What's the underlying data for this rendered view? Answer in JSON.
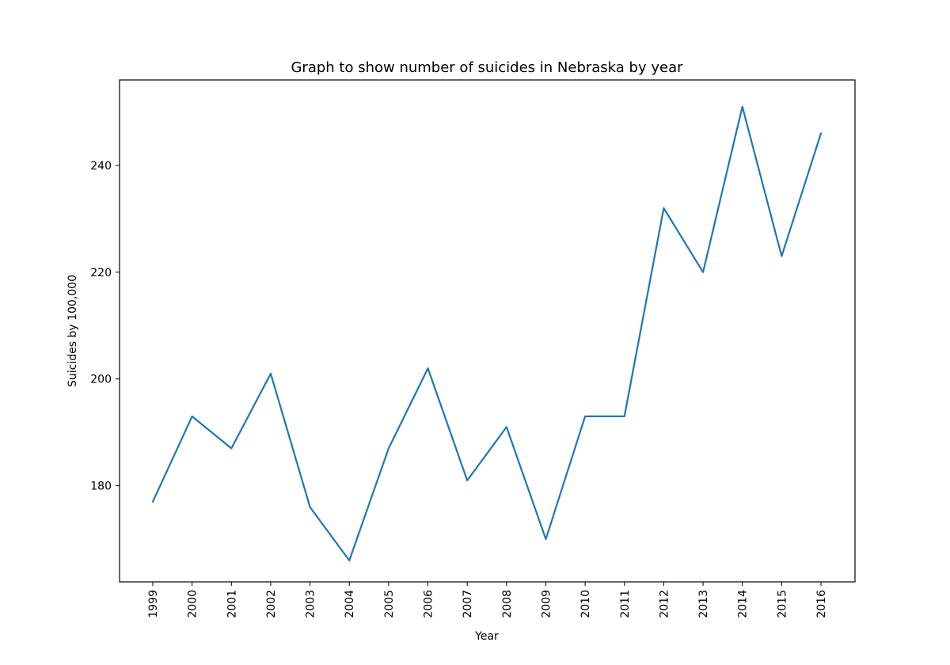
{
  "chart_data": {
    "type": "line",
    "title": "Graph to show number of suicides in Nebraska by year",
    "xlabel": "Year",
    "ylabel": "Suicides by 100,000",
    "categories": [
      "1999",
      "2000",
      "2001",
      "2002",
      "2003",
      "2004",
      "2005",
      "2006",
      "2007",
      "2008",
      "2009",
      "2010",
      "2011",
      "2012",
      "2013",
      "2014",
      "2015",
      "2016"
    ],
    "series": [
      {
        "values": [
          177,
          193,
          187,
          201,
          176,
          166,
          187,
          202,
          181,
          191,
          170,
          193,
          193,
          232,
          220,
          251,
          223,
          246
        ],
        "color": "#1f77b4"
      }
    ],
    "ylim": [
      162,
      256
    ],
    "yticks": [
      180,
      200,
      220,
      240
    ],
    "grid": false,
    "legend": "none"
  }
}
